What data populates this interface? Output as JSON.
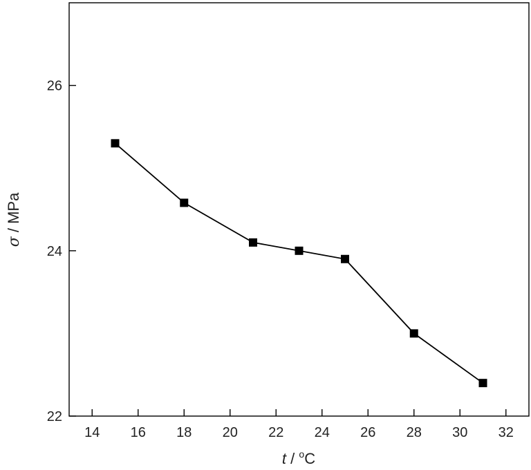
{
  "chart_data": {
    "type": "line",
    "title": "",
    "xlabel": {
      "symbol": "t",
      "unit_prefix": " / ",
      "degree": "o",
      "unit": "C"
    },
    "ylabel": {
      "symbol": "σ",
      "unit": " / MPa"
    },
    "xlim": [
      13,
      33
    ],
    "ylim": [
      22,
      27
    ],
    "xticks": [
      14,
      16,
      18,
      20,
      22,
      24,
      26,
      28,
      30,
      32
    ],
    "yticks": [
      22,
      24,
      26
    ],
    "grid": false,
    "legend": "none",
    "x": [
      15,
      18,
      21,
      23,
      25,
      28,
      31
    ],
    "series": [
      {
        "name": "",
        "values": [
          25.3,
          24.58,
          24.1,
          24.0,
          23.9,
          23.0,
          22.4
        ]
      }
    ],
    "colors": {
      "line": "#000000",
      "marker": "#000000",
      "axis": "#000000"
    }
  }
}
